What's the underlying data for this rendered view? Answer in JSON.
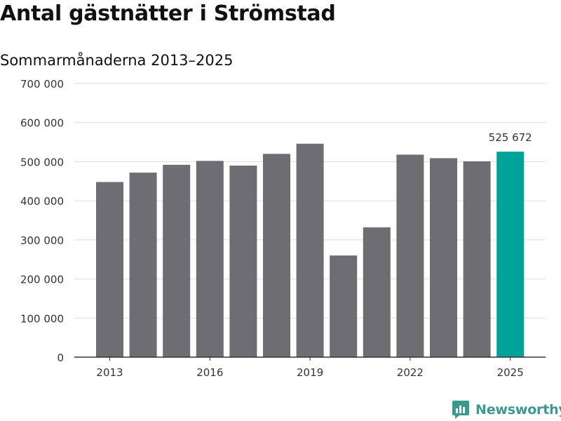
{
  "header": {
    "title": "Antal gästnätter i Strömstad",
    "subtitle": "Sommarmånaderna 2013–2025"
  },
  "branding": {
    "name": "Newsworthy",
    "icon": "newsworthy-logo-icon",
    "color": "#3a9a8f"
  },
  "colors": {
    "bar": "#6e6d72",
    "highlight": "#00a398",
    "grid": "#dddddd",
    "axis": "#333333"
  },
  "chart_data": {
    "type": "bar",
    "categories": [
      "2013",
      "2014",
      "2015",
      "2016",
      "2017",
      "2018",
      "2019",
      "2020",
      "2021",
      "2022",
      "2023",
      "2024",
      "2025"
    ],
    "values": [
      448000,
      472000,
      492000,
      502000,
      490000,
      520000,
      546000,
      260000,
      332000,
      518000,
      509000,
      501000,
      525672
    ],
    "highlight_index": 12,
    "data_labels": [
      {
        "index": 12,
        "text": "525 672"
      }
    ],
    "x_tick_labels": [
      "2013",
      "2016",
      "2019",
      "2022",
      "2025"
    ],
    "y_ticks": [
      0,
      100000,
      200000,
      300000,
      400000,
      500000,
      600000,
      700000
    ],
    "y_tick_labels": [
      "0",
      "100 000",
      "200 000",
      "300 000",
      "400 000",
      "500 000",
      "600 000",
      "700 000"
    ],
    "ylim": [
      0,
      700000
    ],
    "grid": true,
    "legend": "none"
  }
}
